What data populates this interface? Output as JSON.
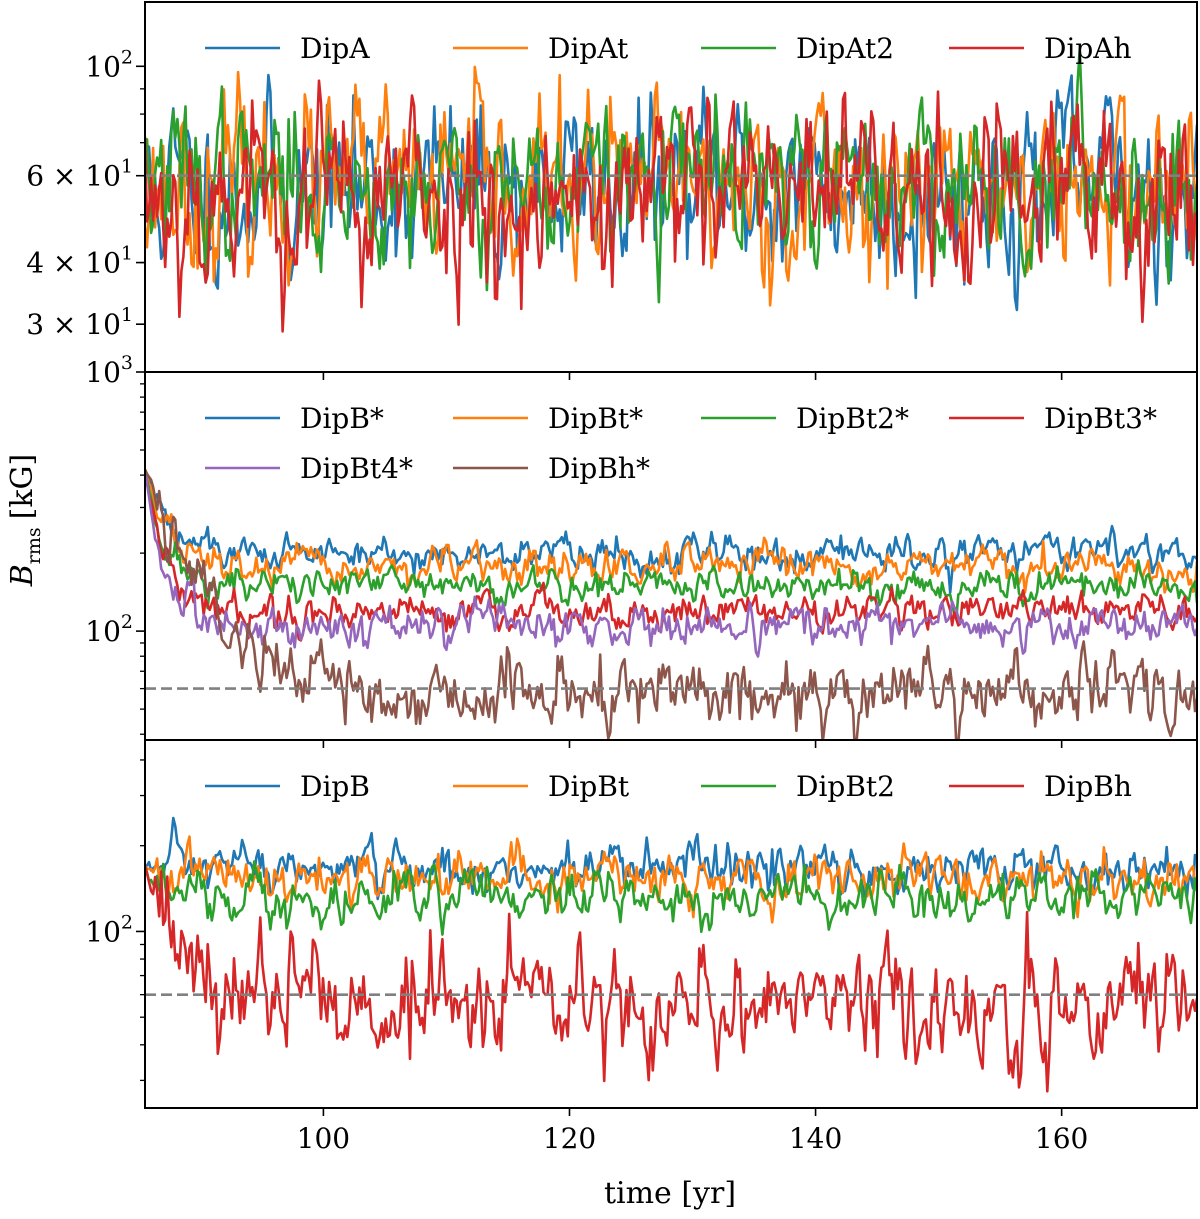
{
  "figure": {
    "ylabel": "B",
    "ylabel_sub": "rms",
    "ylabel_unit": "[kG]",
    "xlabel": "time [yr]"
  },
  "chart_data": [
    {
      "type": "line",
      "panel": "top",
      "yscale": "log",
      "xlim": [
        85.5,
        171
      ],
      "ylim": [
        24,
        135
      ],
      "x_ticks": [
        100,
        120,
        140,
        160
      ],
      "x_tick_labels": [
        "",
        "",
        "",
        ""
      ],
      "y_ticks": [
        {
          "value": 100,
          "base": "10",
          "exp": "2"
        },
        {
          "value": 60,
          "mant": "6 × 10",
          "exp": "1"
        },
        {
          "value": 40,
          "mant": "4 × 10",
          "exp": "1"
        },
        {
          "value": 30,
          "mant": "3 × 10",
          "exp": "1"
        }
      ],
      "reference_line": 60,
      "legend": {
        "placement": "top",
        "ncol": 4
      },
      "series": [
        {
          "name": "DipA",
          "color": "#1f77b4",
          "mean": 57,
          "amp": 0.17,
          "seed": 11
        },
        {
          "name": "DipAt",
          "color": "#ff7f0e",
          "mean": 57,
          "amp": 0.17,
          "seed": 23
        },
        {
          "name": "DipAt2",
          "color": "#2ca02c",
          "mean": 58,
          "amp": 0.16,
          "seed": 37
        },
        {
          "name": "DipAh",
          "color": "#d62728",
          "mean": 55,
          "amp": 0.19,
          "seed": 53
        }
      ]
    },
    {
      "type": "line",
      "panel": "middle",
      "yscale": "log",
      "xlim": [
        85.5,
        171
      ],
      "ylim": [
        38,
        1000
      ],
      "x_ticks": [
        100,
        120,
        140,
        160
      ],
      "x_tick_labels": [
        "",
        "",
        "",
        ""
      ],
      "y_ticks": [
        {
          "value": 1000,
          "base": "10",
          "exp": "3"
        },
        {
          "value": 100,
          "base": "10",
          "exp": "2"
        }
      ],
      "reference_line": 60,
      "legend": {
        "placement": "top",
        "ncol": 4
      },
      "series": [
        {
          "name": "DipB*",
          "color": "#1f77b4",
          "start": 420,
          "settle": 200,
          "tau": 1.6,
          "amp": 0.07,
          "seed": 61
        },
        {
          "name": "DipBt*",
          "color": "#ff7f0e",
          "start": 420,
          "settle": 175,
          "tau": 1.5,
          "amp": 0.07,
          "seed": 67
        },
        {
          "name": "DipBt2*",
          "color": "#2ca02c",
          "start": 420,
          "settle": 150,
          "tau": 1.2,
          "amp": 0.07,
          "seed": 71
        },
        {
          "name": "DipBt3*",
          "color": "#d62728",
          "start": 420,
          "settle": 120,
          "tau": 1.1,
          "amp": 0.07,
          "seed": 79
        },
        {
          "name": "DipBt4*",
          "color": "#9467bd",
          "start": 420,
          "settle": 105,
          "tau": 1.0,
          "amp": 0.08,
          "seed": 83
        },
        {
          "name": "DipBh*",
          "color": "#8c564b",
          "start": 420,
          "settle": 58,
          "tau": 3.5,
          "amp": 0.14,
          "seed": 89
        }
      ]
    },
    {
      "type": "line",
      "panel": "bottom",
      "yscale": "log",
      "xlim": [
        85.5,
        171
      ],
      "ylim": [
        24,
        470
      ],
      "x_ticks": [
        100,
        120,
        140,
        160
      ],
      "x_tick_labels": [
        "100",
        "120",
        "140",
        "160"
      ],
      "y_ticks": [
        {
          "value": 100,
          "base": "10",
          "exp": "2"
        }
      ],
      "reference_line": 60,
      "legend": {
        "placement": "top",
        "ncol": 4
      },
      "series": [
        {
          "name": "DipB",
          "color": "#1f77b4",
          "start": 170,
          "settle": 165,
          "tau": 1.0,
          "amp": 0.09,
          "seed": 97
        },
        {
          "name": "DipBt",
          "color": "#ff7f0e",
          "start": 170,
          "settle": 155,
          "tau": 1.0,
          "amp": 0.09,
          "seed": 101
        },
        {
          "name": "DipBt2",
          "color": "#2ca02c",
          "start": 170,
          "settle": 132,
          "tau": 1.0,
          "amp": 0.09,
          "seed": 103
        },
        {
          "name": "DipBh",
          "color": "#d62728",
          "start": 170,
          "settle": 55,
          "tau": 2.5,
          "amp": 0.2,
          "seed": 107
        }
      ]
    }
  ]
}
